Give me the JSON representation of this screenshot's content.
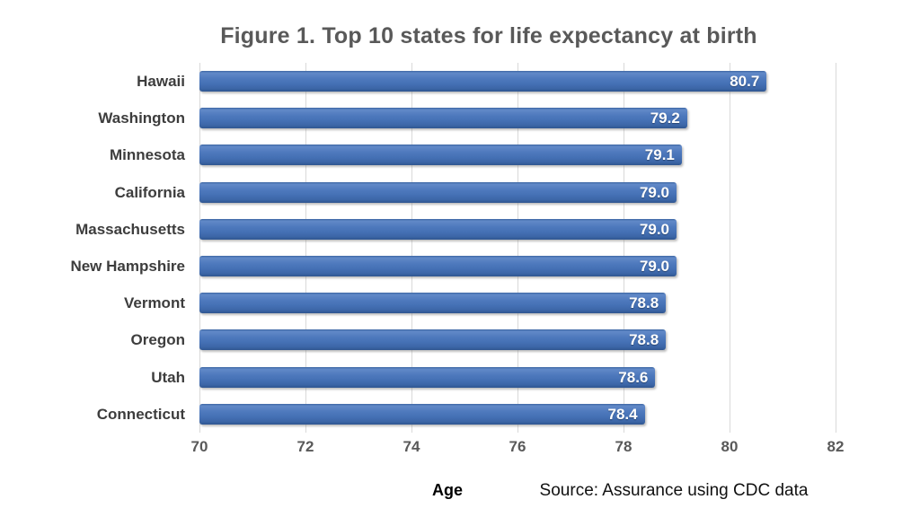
{
  "title": "Figure 1. Top 10 states for life expectancy at birth",
  "footer": {
    "xlabel": "Age",
    "source": "Source: Assurance using CDC data"
  },
  "colors": {
    "bar_main": "#4571b5",
    "bar_highlight": "#6189c8",
    "bar_shadow_edge": "#2f5690",
    "gridline": "#d9d9d9",
    "title_text": "#595959",
    "category_text": "#3d3d3d",
    "tick_text": "#595959",
    "value_text": "#ffffff",
    "background": "#ffffff"
  },
  "chart_data": {
    "type": "bar",
    "orientation": "horizontal",
    "title": "Figure 1. Top 10 states for life expectancy at birth",
    "categories": [
      "Hawaii",
      "Washington",
      "Minnesota",
      "California",
      "Massachusetts",
      "New Hampshire",
      "Vermont",
      "Oregon",
      "Utah",
      "Connecticut"
    ],
    "values": [
      80.7,
      79.2,
      79.1,
      79.0,
      79.0,
      79.0,
      78.8,
      78.8,
      78.6,
      78.4
    ],
    "value_labels": [
      "80.7",
      "79.2",
      "79.1",
      "79.0",
      "79.0",
      "79.0",
      "78.8",
      "78.8",
      "78.6",
      "78.4"
    ],
    "xlabel": "Age",
    "ylabel": "",
    "xlim": [
      70,
      82
    ],
    "xticks": [
      70,
      72,
      74,
      76,
      78,
      80,
      82
    ],
    "grid": "vertical",
    "legend": "none",
    "source_note": "Source: Assurance using CDC data"
  }
}
